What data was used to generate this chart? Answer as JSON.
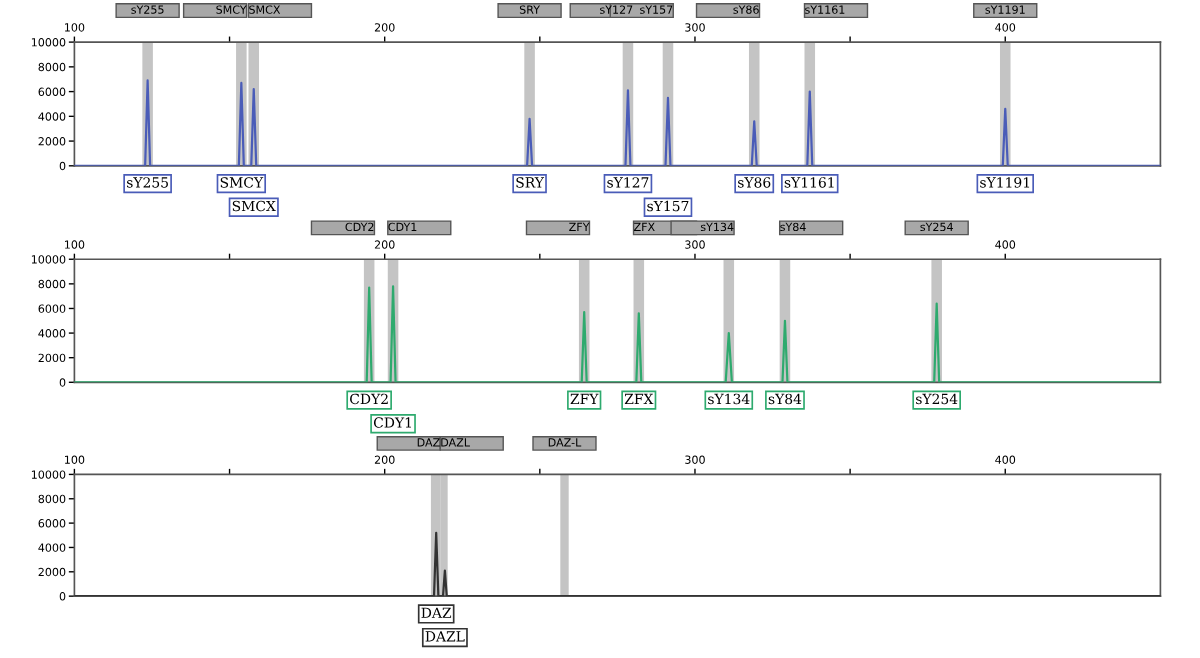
{
  "chart_data": [
    {
      "type": "line",
      "x": [
        100,
        122.8,
        123.6,
        124.4,
        153.0,
        153.8,
        154.6,
        157.0,
        157.8,
        158.6,
        245.9,
        246.7,
        247.5,
        277.6,
        278.4,
        279.2,
        290.5,
        291.3,
        292.1,
        318.3,
        319.1,
        319.9,
        336.2,
        337.0,
        337.8,
        399.2,
        400.0,
        400.8,
        450
      ],
      "series": [
        {
          "color": "#4a5cb8",
          "values": [
            0,
            0,
            6900,
            0,
            0,
            6700,
            0,
            0,
            6200,
            0,
            0,
            3800,
            0,
            0,
            6100,
            0,
            0,
            5500,
            0,
            0,
            3600,
            0,
            0,
            6000,
            0,
            0,
            4600,
            0,
            0
          ]
        }
      ],
      "xlim": [
        100,
        450
      ],
      "xticks": [
        100,
        {
          "value": 150,
          "label": null
        },
        200,
        {
          "value": 250,
          "label": null
        },
        300,
        {
          "value": 350,
          "label": null
        },
        400
      ],
      "ylim": [
        0,
        10000
      ],
      "yticks": [
        0,
        2000,
        4000,
        6000,
        8000,
        10000
      ],
      "bands": [
        {
          "axis": "x",
          "from": 121.9,
          "to": 125.3,
          "label": "sY255"
        },
        {
          "axis": "x",
          "from": 152.1,
          "to": 155.5,
          "label": "SMCY"
        },
        {
          "axis": "x",
          "from": 156.1,
          "to": 159.5,
          "label": "SMCX"
        },
        {
          "axis": "x",
          "from": 245.0,
          "to": 248.4,
          "label": "SRY"
        },
        {
          "axis": "x",
          "from": 276.7,
          "to": 280.1,
          "label": "sY127"
        },
        {
          "axis": "x",
          "from": 289.6,
          "to": 293.0,
          "label": "sY157"
        },
        {
          "axis": "x",
          "from": 317.4,
          "to": 320.8,
          "label": "sY86"
        },
        {
          "axis": "x",
          "from": 335.3,
          "to": 338.7,
          "label": "sY1161"
        },
        {
          "axis": "x",
          "from": 398.3,
          "to": 401.7,
          "label": "sY1191"
        }
      ],
      "annotations": [
        {
          "text": "sY255",
          "x": 123.6,
          "y": 0
        },
        {
          "text": "SMCY",
          "x": 153.8,
          "y": 0
        },
        {
          "text": "SMCX",
          "x": 157.8,
          "y": 0
        },
        {
          "text": "SRY",
          "x": 246.7,
          "y": 0
        },
        {
          "text": "sY127",
          "x": 278.4,
          "y": 0
        },
        {
          "text": "sY157",
          "x": 291.3,
          "y": 0
        },
        {
          "text": "sY86",
          "x": 319.1,
          "y": 0
        },
        {
          "text": "sY1161",
          "x": 337.0,
          "y": 0
        },
        {
          "text": "sY1191",
          "x": 400.0,
          "y": 0
        }
      ]
    },
    {
      "type": "line",
      "x": [
        100,
        194.2,
        195.0,
        195.8,
        201.9,
        202.7,
        203.5,
        263.5,
        264.3,
        265.1,
        281.1,
        281.9,
        282.7,
        309.9,
        310.9,
        311.9,
        328.2,
        329.0,
        329.8,
        377.1,
        377.9,
        378.7,
        450
      ],
      "series": [
        {
          "color": "#2eaa6e",
          "values": [
            0,
            0,
            7700,
            0,
            0,
            7800,
            0,
            0,
            5700,
            0,
            0,
            5600,
            0,
            0,
            4000,
            0,
            0,
            5000,
            0,
            0,
            6400,
            0,
            0
          ]
        }
      ],
      "xlim": [
        100,
        450
      ],
      "xticks": [
        100,
        {
          "value": 150,
          "label": null
        },
        200,
        {
          "value": 250,
          "label": null
        },
        300,
        {
          "value": 350,
          "label": null
        },
        400
      ],
      "ylim": [
        0,
        10000
      ],
      "yticks": [
        0,
        2000,
        4000,
        6000,
        8000,
        10000
      ],
      "bands": [
        {
          "axis": "x",
          "from": 193.3,
          "to": 196.7,
          "label": "CDY2"
        },
        {
          "axis": "x",
          "from": 201.0,
          "to": 204.4,
          "label": "CDY1"
        },
        {
          "axis": "x",
          "from": 262.6,
          "to": 266.0,
          "label": "ZFY"
        },
        {
          "axis": "x",
          "from": 280.2,
          "to": 283.6,
          "label": "ZFX"
        },
        {
          "axis": "x",
          "from": 309.2,
          "to": 312.6,
          "label": "sY134"
        },
        {
          "axis": "x",
          "from": 327.3,
          "to": 330.7,
          "label": "sY84"
        },
        {
          "axis": "x",
          "from": 376.2,
          "to": 379.6,
          "label": "sY254"
        }
      ],
      "annotations": [
        {
          "text": "CDY2",
          "x": 195.0,
          "y": 0
        },
        {
          "text": "CDY1",
          "x": 202.7,
          "y": 0
        },
        {
          "text": "ZFY",
          "x": 264.3,
          "y": 0
        },
        {
          "text": "ZFX",
          "x": 281.9,
          "y": 0
        },
        {
          "text": "sY134",
          "x": 310.9,
          "y": 0
        },
        {
          "text": "sY84",
          "x": 329.0,
          "y": 0
        },
        {
          "text": "sY254",
          "x": 377.9,
          "y": 0
        }
      ]
    },
    {
      "type": "line",
      "x": [
        100,
        215.9,
        216.6,
        217.3,
        218.8,
        219.4,
        220.0,
        450
      ],
      "series": [
        {
          "color": "#333333",
          "values": [
            0,
            0,
            5200,
            0,
            0,
            2100,
            0,
            0
          ]
        }
      ],
      "xlim": [
        100,
        450
      ],
      "xticks": [
        100,
        {
          "value": 150,
          "label": null
        },
        200,
        {
          "value": 250,
          "label": null
        },
        300,
        {
          "value": 350,
          "label": null
        },
        400
      ],
      "ylim": [
        0,
        10000
      ],
      "yticks": [
        0,
        2000,
        4000,
        6000,
        8000,
        10000
      ],
      "bands": [
        {
          "axis": "x",
          "from": 214.9,
          "to": 217.9,
          "label": "DAZ"
        },
        {
          "axis": "x",
          "from": 217.9,
          "to": 220.3,
          "label": "DAZL"
        },
        {
          "axis": "x",
          "from": 256.6,
          "to": 259.3,
          "label": "DAZ-L"
        }
      ],
      "annotations": [
        {
          "text": "DAZ",
          "x": 216.6,
          "y": 0
        },
        {
          "text": "DAZL",
          "x": 219.4,
          "y": 0
        }
      ]
    }
  ]
}
